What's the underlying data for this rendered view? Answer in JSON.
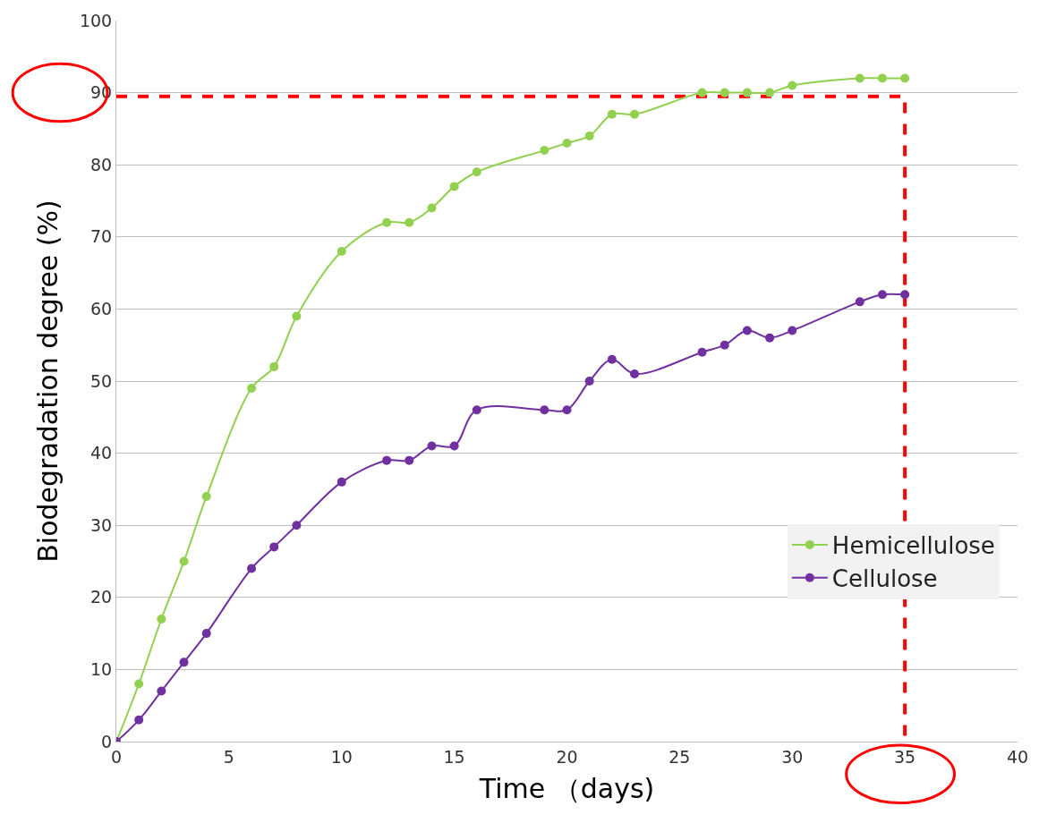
{
  "chart_data": {
    "type": "line",
    "xlabel": "Time （days)",
    "ylabel": "Biodegradation degree (%)",
    "xlim": [
      0,
      40
    ],
    "xticks": [
      0,
      5,
      10,
      15,
      20,
      25,
      30,
      35,
      40
    ],
    "ylim": [
      0,
      100
    ],
    "yticks": [
      0,
      10,
      20,
      30,
      40,
      50,
      60,
      70,
      80,
      90,
      100
    ],
    "grid": "y",
    "legend": "right",
    "marker": "circle",
    "line_style": "solid",
    "series": [
      {
        "type": "line",
        "color": "#ff0000",
        "line_style": "dashed",
        "marker": "none",
        "x": [
          0,
          35,
          35
        ],
        "values": [
          89.5,
          89.5,
          0
        ]
      },
      {
        "name": "Hemicellulose",
        "color": "#92d050",
        "x": [
          0,
          1,
          2,
          3,
          4,
          6,
          7,
          8,
          10,
          12,
          13,
          14,
          15,
          16,
          19,
          20,
          21,
          22,
          23,
          26,
          27,
          28,
          29,
          30,
          33,
          34,
          35
        ],
        "values": [
          0,
          8,
          17,
          25,
          34,
          49,
          52,
          59,
          68,
          72,
          72,
          74,
          77,
          79,
          82,
          83,
          84,
          87,
          87,
          90,
          90,
          90,
          90,
          91,
          92,
          92,
          92
        ]
      },
      {
        "name": "Cellulose",
        "color": "#7030a0",
        "x": [
          0,
          1,
          2,
          3,
          4,
          6,
          7,
          8,
          10,
          12,
          13,
          14,
          15,
          16,
          19,
          20,
          21,
          22,
          23,
          26,
          27,
          28,
          29,
          30,
          33,
          34,
          35
        ],
        "values": [
          0,
          3,
          7,
          11,
          15,
          24,
          27,
          30,
          36,
          39,
          39,
          41,
          41,
          46,
          46,
          46,
          50,
          53,
          51,
          54,
          55,
          57,
          56,
          57,
          61,
          62,
          62
        ]
      }
    ]
  }
}
